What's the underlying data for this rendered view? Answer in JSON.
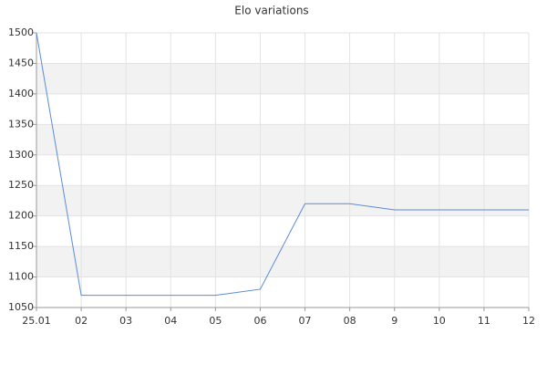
{
  "chart_data": {
    "type": "line",
    "title": "Elo variations",
    "categories": [
      "25.01",
      "02",
      "03",
      "04",
      "05",
      "06",
      "07",
      "08",
      "9",
      "10",
      "11",
      "12"
    ],
    "series": [
      {
        "name": "Elo",
        "color": "#5b8bd9",
        "values": [
          1500,
          1070,
          1070,
          1070,
          1070,
          1080,
          1220,
          1220,
          1210,
          1210,
          1210,
          1210
        ]
      }
    ],
    "ylim": [
      1050,
      1500
    ],
    "yticks": [
      1050,
      1100,
      1150,
      1200,
      1250,
      1300,
      1350,
      1400,
      1450,
      1500
    ],
    "grid": true,
    "alternate_bands": true,
    "legend": false
  }
}
